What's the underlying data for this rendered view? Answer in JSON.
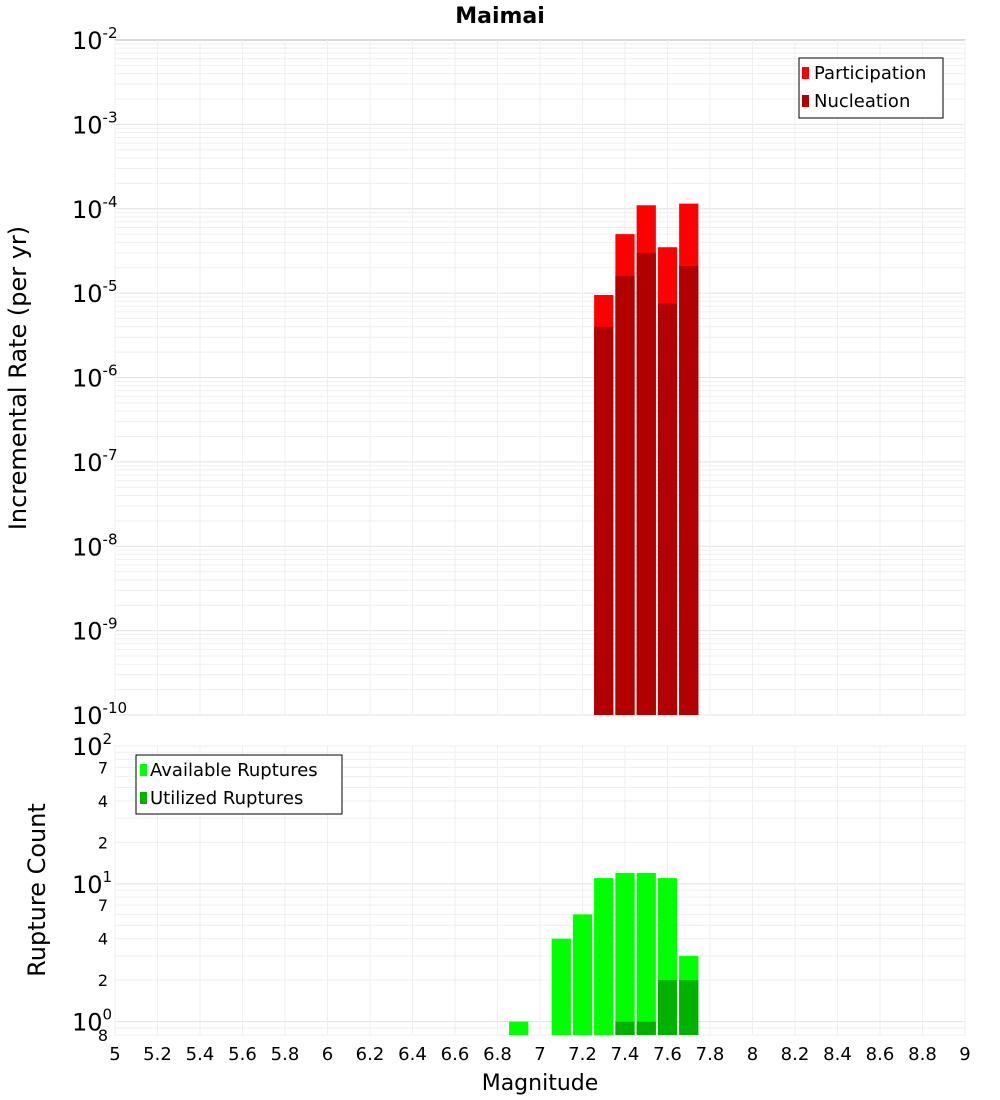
{
  "title": "Maimai",
  "colors": {
    "participation": "#ff0000",
    "nucleation": "#b20000",
    "available": "#00ff00",
    "utilized": "#00b200"
  },
  "chart_data": [
    {
      "type": "bar",
      "name": "rate-panel",
      "ylabel": "Incremental Rate (per yr)",
      "yscale": "log",
      "ylim": [
        1e-10,
        0.01
      ],
      "xlim": [
        5,
        9
      ],
      "grid": true,
      "legend_position": "top-right",
      "yticks": [
        {
          "base": "10",
          "exp": "-2"
        },
        {
          "base": "10",
          "exp": "-3"
        },
        {
          "base": "10",
          "exp": "-4"
        },
        {
          "base": "10",
          "exp": "-5"
        },
        {
          "base": "10",
          "exp": "-6"
        },
        {
          "base": "10",
          "exp": "-7"
        },
        {
          "base": "10",
          "exp": "-8"
        },
        {
          "base": "10",
          "exp": "-9"
        },
        {
          "base": "10",
          "exp": "-10"
        }
      ],
      "x": [
        7.3,
        7.4,
        7.5,
        7.6,
        7.7
      ],
      "series": [
        {
          "name": "Participation",
          "color_key": "participation",
          "values": [
            9.5e-06,
            5e-05,
            0.00011,
            3.5e-05,
            0.000115
          ]
        },
        {
          "name": "Nucleation",
          "color_key": "nucleation",
          "values": [
            4e-06,
            1.6e-05,
            3e-05,
            7.5e-06,
            2.1e-05
          ]
        }
      ]
    },
    {
      "type": "bar",
      "name": "count-panel",
      "ylabel": "Rupture Count",
      "xlabel": "Magnitude",
      "yscale": "log",
      "ylim": [
        0.8,
        100
      ],
      "xlim": [
        5,
        9
      ],
      "grid": true,
      "legend_position": "top-left",
      "yticks": [
        {
          "base": "10",
          "exp": "2",
          "value": 100
        },
        {
          "base": "7",
          "exp": "",
          "value": 70
        },
        {
          "base": "4",
          "exp": "",
          "value": 40
        },
        {
          "base": "2",
          "exp": "",
          "value": 20
        },
        {
          "base": "10",
          "exp": "1",
          "value": 10
        },
        {
          "base": "7",
          "exp": "",
          "value": 7
        },
        {
          "base": "4",
          "exp": "",
          "value": 4
        },
        {
          "base": "2",
          "exp": "",
          "value": 2
        },
        {
          "base": "10",
          "exp": "0",
          "value": 1
        },
        {
          "base": "8",
          "exp": "",
          "value": 0.8
        }
      ],
      "xticks": [
        "5",
        "5.2",
        "5.4",
        "5.6",
        "5.8",
        "6",
        "6.2",
        "6.4",
        "6.6",
        "6.8",
        "7",
        "7.2",
        "7.4",
        "7.6",
        "7.8",
        "8",
        "8.2",
        "8.4",
        "8.6",
        "8.8",
        "9"
      ],
      "x": [
        6.9,
        7.1,
        7.2,
        7.3,
        7.4,
        7.5,
        7.6,
        7.7
      ],
      "series": [
        {
          "name": "Available Ruptures",
          "color_key": "available",
          "values": [
            1,
            4,
            6,
            11,
            12,
            12,
            11,
            3
          ]
        },
        {
          "name": "Utilized Ruptures",
          "color_key": "utilized",
          "values": [
            0,
            0,
            0,
            0,
            1,
            1,
            2,
            2
          ]
        }
      ]
    }
  ]
}
